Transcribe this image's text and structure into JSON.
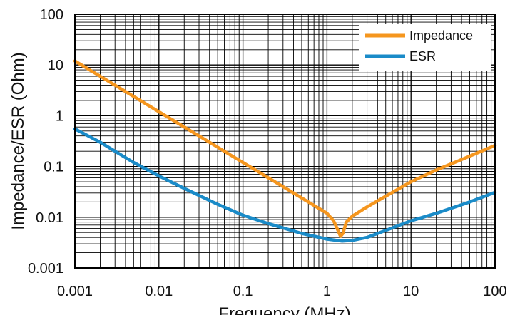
{
  "chart_data": {
    "type": "line",
    "xscale": "log",
    "yscale": "log",
    "xlim": [
      0.001,
      100
    ],
    "ylim": [
      0.001,
      100
    ],
    "grid": true,
    "legend_position": "top-right",
    "xlabel": "Frequency (MHz)",
    "ylabel": "Impedance/ESR (Ohm)",
    "x_ticks": [
      "0.001",
      "0.01",
      "0.1",
      "1",
      "10",
      "100"
    ],
    "y_ticks": [
      "0.001",
      "0.01",
      "0.1",
      "1",
      "10",
      "100"
    ],
    "series": [
      {
        "name": "Impedance",
        "color": "#f5961e",
        "points": [
          [
            0.001,
            12
          ],
          [
            0.002,
            6
          ],
          [
            0.005,
            2.4
          ],
          [
            0.01,
            1.2
          ],
          [
            0.02,
            0.6
          ],
          [
            0.05,
            0.24
          ],
          [
            0.1,
            0.12
          ],
          [
            0.2,
            0.06
          ],
          [
            0.5,
            0.024
          ],
          [
            0.8,
            0.015
          ],
          [
            1.0,
            0.012
          ],
          [
            1.2,
            0.0085
          ],
          [
            1.35,
            0.0055
          ],
          [
            1.45,
            0.0042
          ],
          [
            1.55,
            0.0048
          ],
          [
            1.7,
            0.008
          ],
          [
            2.0,
            0.0105
          ],
          [
            3.0,
            0.016
          ],
          [
            5.0,
            0.026
          ],
          [
            10,
            0.05
          ],
          [
            20,
            0.085
          ],
          [
            50,
            0.16
          ],
          [
            100,
            0.26
          ]
        ]
      },
      {
        "name": "ESR",
        "color": "#1a8bc8",
        "points": [
          [
            0.001,
            0.55
          ],
          [
            0.002,
            0.3
          ],
          [
            0.005,
            0.12
          ],
          [
            0.01,
            0.065
          ],
          [
            0.02,
            0.037
          ],
          [
            0.05,
            0.018
          ],
          [
            0.1,
            0.011
          ],
          [
            0.2,
            0.0075
          ],
          [
            0.5,
            0.0048
          ],
          [
            1.0,
            0.0037
          ],
          [
            1.5,
            0.0034
          ],
          [
            2.0,
            0.0035
          ],
          [
            3.0,
            0.004
          ],
          [
            5.0,
            0.0055
          ],
          [
            10,
            0.0085
          ],
          [
            20,
            0.012
          ],
          [
            50,
            0.02
          ],
          [
            100,
            0.031
          ]
        ]
      }
    ]
  }
}
